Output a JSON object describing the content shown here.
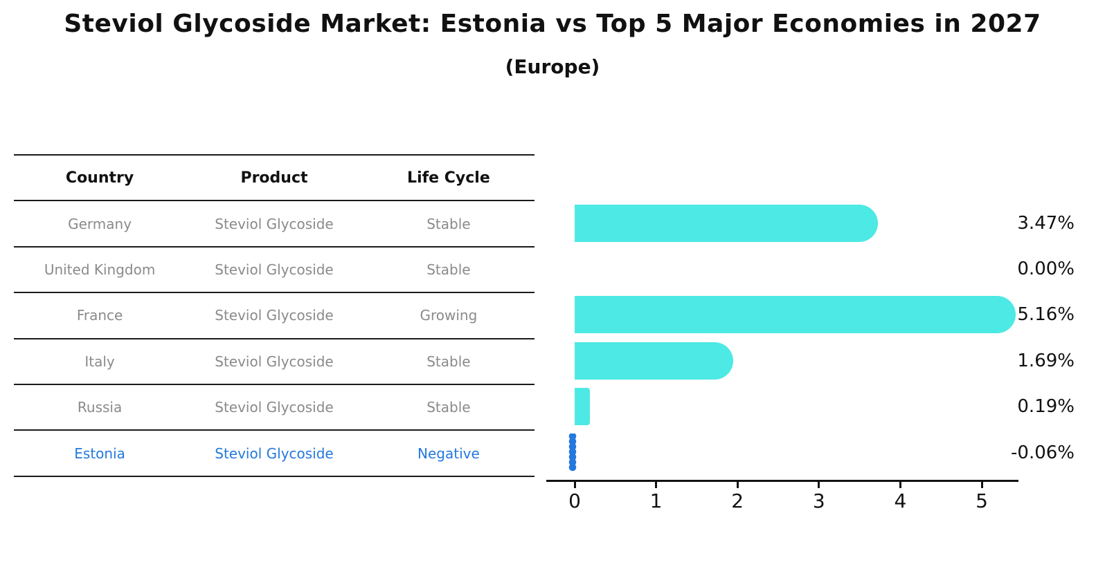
{
  "title": "Steviol Glycoside Market: Estonia vs Top 5 Major Economies in 2027",
  "subtitle": "(Europe)",
  "colors": {
    "bar": "#4de9e4",
    "highlight": "#2379de",
    "text": "#111111",
    "muted_text": "#8a8a8a",
    "table_line": "#1a1a1a"
  },
  "table": {
    "headers": [
      "Country",
      "Product",
      "Life Cycle"
    ],
    "rows": [
      {
        "country": "Germany",
        "product": "Steviol Glycoside",
        "life_cycle": "Stable",
        "highlight": false
      },
      {
        "country": "United Kingdom",
        "product": "Steviol Glycoside",
        "life_cycle": "Stable",
        "highlight": false
      },
      {
        "country": "France",
        "product": "Steviol Glycoside",
        "life_cycle": "Growing",
        "highlight": false
      },
      {
        "country": "Italy",
        "product": "Steviol Glycoside",
        "life_cycle": "Stable",
        "highlight": false
      },
      {
        "country": "Russia",
        "product": "Steviol Glycoside",
        "life_cycle": "Stable",
        "highlight": false
      },
      {
        "country": "Estonia",
        "product": "Steviol Glycoside",
        "life_cycle": "Negative",
        "highlight": true
      }
    ]
  },
  "chart_data": {
    "type": "bar",
    "orientation": "horizontal",
    "categories": [
      "Germany",
      "United Kingdom",
      "France",
      "Italy",
      "Russia",
      "Estonia"
    ],
    "values": [
      3.47,
      0.0,
      5.16,
      1.69,
      0.19,
      -0.06
    ],
    "value_labels": [
      "3.47%",
      "0.00%",
      "5.16%",
      "1.69%",
      "0.19%",
      "-0.06%"
    ],
    "x_ticks": [
      "0",
      "1",
      "2",
      "3",
      "4",
      "5"
    ],
    "xlim": [
      -0.35,
      5.45
    ],
    "grid": false,
    "legend": false,
    "bar_color": "#4de9e4",
    "highlight_color": "#2379de",
    "highlight_index": 5,
    "title": "Steviol Glycoside Market: Estonia vs Top 5 Major Economies in 2027",
    "subtitle": "(Europe)"
  }
}
